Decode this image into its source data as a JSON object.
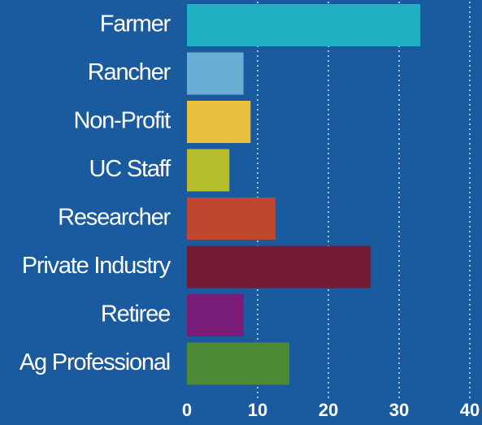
{
  "chart_data": {
    "type": "hbar",
    "categories": [
      "Farmer",
      "Rancher",
      "Non-Profit",
      "UC Staff",
      "Researcher",
      "Private Industry",
      "Retiree",
      "Ag Professional"
    ],
    "values": [
      33,
      8,
      9,
      6,
      12.5,
      26,
      8,
      14.5
    ],
    "colors": [
      "#1fb0c4",
      "#6aaed6",
      "#e8c040",
      "#b5bd2a",
      "#c0472f",
      "#731a35",
      "#7a1d78",
      "#4e8a35"
    ],
    "xlim": [
      0,
      40
    ],
    "xticks": [
      0,
      10,
      20,
      30,
      40
    ],
    "grid": true
  }
}
